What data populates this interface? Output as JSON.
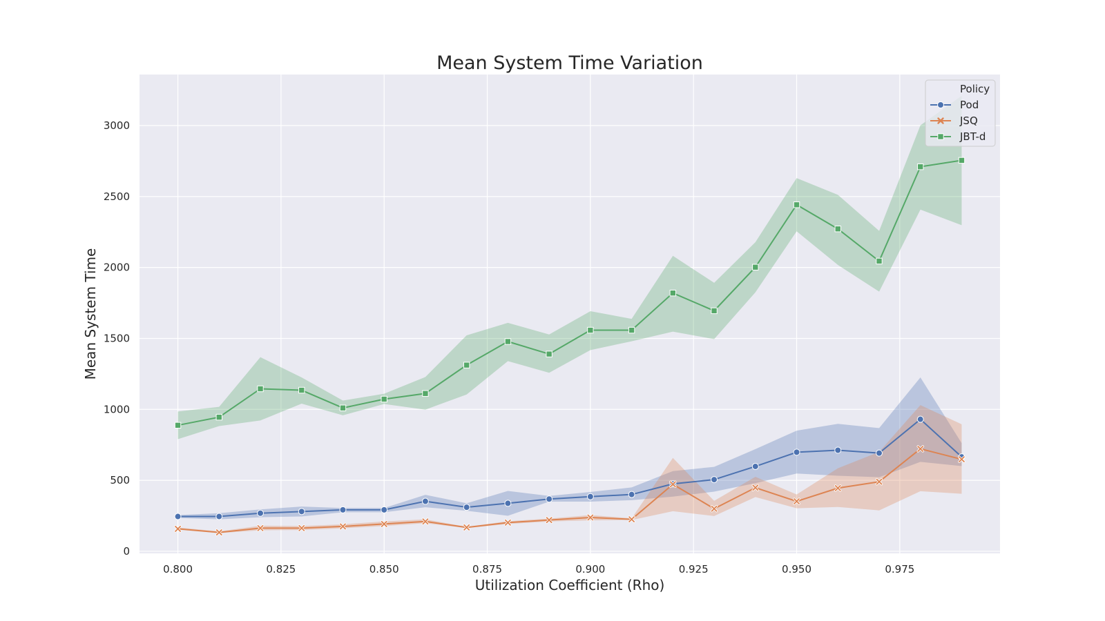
{
  "chart_data": {
    "type": "line",
    "title": "Mean System Time Variation",
    "xlabel": "Utilization Coefficient (Rho)",
    "ylabel": "Mean System Time",
    "xlim": [
      0.7907,
      0.9993
    ],
    "ylim": [
      -15,
      3360
    ],
    "x_ticks": [
      "0.800",
      "0.825",
      "0.850",
      "0.875",
      "0.900",
      "0.925",
      "0.950",
      "0.975"
    ],
    "y_ticks": [
      "0",
      "500",
      "1000",
      "1500",
      "2000",
      "2500",
      "3000"
    ],
    "grid": true,
    "legend_title": "Policy",
    "legend_position": "top-right",
    "x": [
      0.8,
      0.81,
      0.82,
      0.83,
      0.84,
      0.85,
      0.86,
      0.87,
      0.88,
      0.89,
      0.9,
      0.91,
      0.92,
      0.93,
      0.94,
      0.95,
      0.96,
      0.97,
      0.98,
      0.99
    ],
    "series": [
      {
        "name": "Pod",
        "color": "#4c72b0",
        "marker": "circle",
        "values": [
          245,
          245,
          268,
          280,
          292,
          292,
          352,
          310,
          338,
          368,
          385,
          400,
          475,
          505,
          598,
          698,
          712,
          692,
          930,
          665
        ],
        "ci_low": [
          235,
          225,
          240,
          245,
          275,
          275,
          310,
          285,
          250,
          350,
          350,
          360,
          385,
          420,
          480,
          548,
          532,
          522,
          630,
          600
        ],
        "ci_high": [
          255,
          268,
          295,
          315,
          305,
          305,
          398,
          338,
          425,
          390,
          418,
          450,
          565,
          595,
          720,
          850,
          898,
          868,
          1225,
          762
        ]
      },
      {
        "name": "JSQ",
        "color": "#dd8452",
        "marker": "x",
        "values": [
          158,
          133,
          163,
          163,
          175,
          192,
          210,
          168,
          202,
          220,
          238,
          225,
          472,
          300,
          448,
          352,
          445,
          490,
          722,
          648
        ],
        "ci_low": [
          152,
          128,
          148,
          150,
          162,
          178,
          198,
          163,
          192,
          210,
          218,
          220,
          282,
          248,
          382,
          303,
          312,
          288,
          423,
          405
        ],
        "ci_high": [
          168,
          140,
          180,
          178,
          190,
          210,
          225,
          172,
          212,
          230,
          255,
          232,
          658,
          355,
          525,
          400,
          585,
          700,
          1030,
          895
        ]
      },
      {
        "name": "JBT-d",
        "color": "#55a868",
        "marker": "square",
        "values": [
          888,
          945,
          1145,
          1135,
          1010,
          1072,
          1112,
          1312,
          1478,
          1390,
          1558,
          1558,
          1820,
          1695,
          2002,
          2442,
          2272,
          2045,
          2710,
          2755
        ],
        "ci_low": [
          790,
          882,
          922,
          1040,
          958,
          1038,
          998,
          1105,
          1340,
          1258,
          1418,
          1480,
          1548,
          1495,
          1825,
          2255,
          2018,
          1830,
          2408,
          2298
        ],
        "ci_high": [
          985,
          1018,
          1368,
          1225,
          1062,
          1110,
          1228,
          1522,
          1610,
          1528,
          1692,
          1638,
          2082,
          1892,
          2178,
          2630,
          2512,
          2258,
          3002,
          3210
        ]
      }
    ]
  }
}
